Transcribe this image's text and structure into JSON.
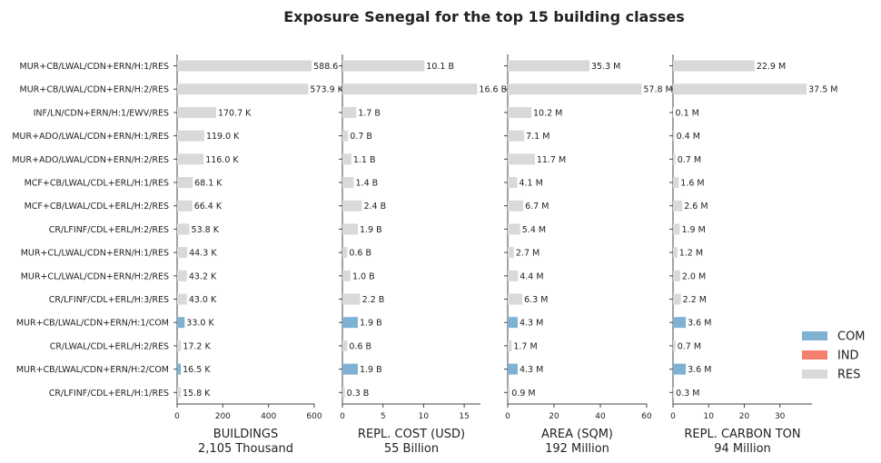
{
  "chart_data": {
    "type": "bar",
    "orientation": "horizontal",
    "title": "Exposure Senegal for the top 15 building classes",
    "categories": [
      "MUR+CB/LWAL/CDN+ERN/H:1/RES",
      "MUR+CB/LWAL/CDN+ERN/H:2/RES",
      "INF/LN/CDN+ERN/H:1/EWV/RES",
      "MUR+ADO/LWAL/CDN+ERN/H:1/RES",
      "MUR+ADO/LWAL/CDN+ERN/H:2/RES",
      "MCF+CB/LWAL/CDL+ERL/H:1/RES",
      "MCF+CB/LWAL/CDL+ERL/H:2/RES",
      "CR/LFINF/CDL+ERL/H:2/RES",
      "MUR+CL/LWAL/CDN+ERN/H:1/RES",
      "MUR+CL/LWAL/CDN+ERN/H:2/RES",
      "CR/LFINF/CDL+ERL/H:3/RES",
      "MUR+CB/LWAL/CDN+ERN/H:1/COM",
      "CR/LWAL/CDL+ERL/H:2/RES",
      "MUR+CB/LWAL/CDN+ERN/H:2/COM",
      "CR/LFINF/CDL+ERL/H:1/RES"
    ],
    "occupancy": [
      "RES",
      "RES",
      "RES",
      "RES",
      "RES",
      "RES",
      "RES",
      "RES",
      "RES",
      "RES",
      "RES",
      "COM",
      "RES",
      "COM",
      "RES"
    ],
    "legend": {
      "placement": "right",
      "entries": [
        {
          "name": "COM",
          "color": "#7fb1d3"
        },
        {
          "name": "IND",
          "color": "#f47f6c"
        },
        {
          "name": "RES",
          "color": "#d9d9d9"
        }
      ]
    },
    "panels": [
      {
        "xlabel": "BUILDINGS",
        "total": "2,105 Thousand",
        "xlim": [
          0,
          600
        ],
        "ticks": [
          0,
          200,
          400,
          600
        ],
        "tick_labels": [
          "0",
          "200",
          "400",
          "600"
        ],
        "values": [
          588.6,
          573.9,
          170.7,
          119.0,
          116.0,
          68.1,
          66.4,
          53.8,
          44.3,
          43.2,
          43.0,
          33.0,
          17.2,
          16.5,
          15.8
        ],
        "labels": [
          "588.6 K",
          "573.9 K",
          "170.7 K",
          "119.0 K",
          "116.0 K",
          "68.1 K",
          "66.4 K",
          "53.8 K",
          "44.3 K",
          "43.2 K",
          "43.0 K",
          "33.0 K",
          "17.2 K",
          "16.5 K",
          "15.8 K"
        ]
      },
      {
        "xlabel": "REPL. COST (USD)",
        "total": "55 Billion",
        "xlim": [
          0,
          17
        ],
        "ticks": [
          0,
          5,
          10,
          15
        ],
        "tick_labels": [
          "0",
          "5",
          "10",
          "15"
        ],
        "values": [
          10.1,
          16.6,
          1.7,
          0.7,
          1.1,
          1.4,
          2.4,
          1.9,
          0.6,
          1.0,
          2.2,
          1.9,
          0.6,
          1.9,
          0.3
        ],
        "labels": [
          "10.1 B",
          "16.6 B",
          "1.7 B",
          "0.7 B",
          "1.1 B",
          "1.4 B",
          "2.4 B",
          "1.9 B",
          "0.6 B",
          "1.0 B",
          "2.2 B",
          "1.9 B",
          "0.6 B",
          "1.9 B",
          "0.3 B"
        ]
      },
      {
        "xlabel": "AREA (SQM)",
        "total": "192 Million",
        "xlim": [
          0,
          60
        ],
        "ticks": [
          0,
          20,
          40,
          60
        ],
        "tick_labels": [
          "0",
          "20",
          "40",
          "60"
        ],
        "values": [
          35.3,
          57.8,
          10.2,
          7.1,
          11.7,
          4.1,
          6.7,
          5.4,
          2.7,
          4.4,
          6.3,
          4.3,
          1.7,
          4.3,
          0.9
        ],
        "labels": [
          "35.3 M",
          "57.8 M",
          "10.2 M",
          "7.1 M",
          "11.7 M",
          "4.1 M",
          "6.7 M",
          "5.4 M",
          "2.7 M",
          "4.4 M",
          "6.3 M",
          "4.3 M",
          "1.7 M",
          "4.3 M",
          "0.9 M"
        ]
      },
      {
        "xlabel": "REPL. CARBON TON",
        "total": "94 Million",
        "xlim": [
          0,
          39
        ],
        "ticks": [
          0,
          10,
          20,
          30
        ],
        "tick_labels": [
          "0",
          "10",
          "20",
          "30"
        ],
        "values": [
          22.9,
          37.5,
          0.1,
          0.4,
          0.7,
          1.6,
          2.6,
          1.9,
          1.2,
          2.0,
          2.2,
          3.6,
          0.7,
          3.6,
          0.3
        ],
        "labels": [
          "22.9 M",
          "37.5 M",
          "0.1 M",
          "0.4 M",
          "0.7 M",
          "1.6 M",
          "2.6 M",
          "1.9 M",
          "1.2 M",
          "2.0 M",
          "2.2 M",
          "3.6 M",
          "0.7 M",
          "3.6 M",
          "0.3 M"
        ]
      }
    ]
  }
}
